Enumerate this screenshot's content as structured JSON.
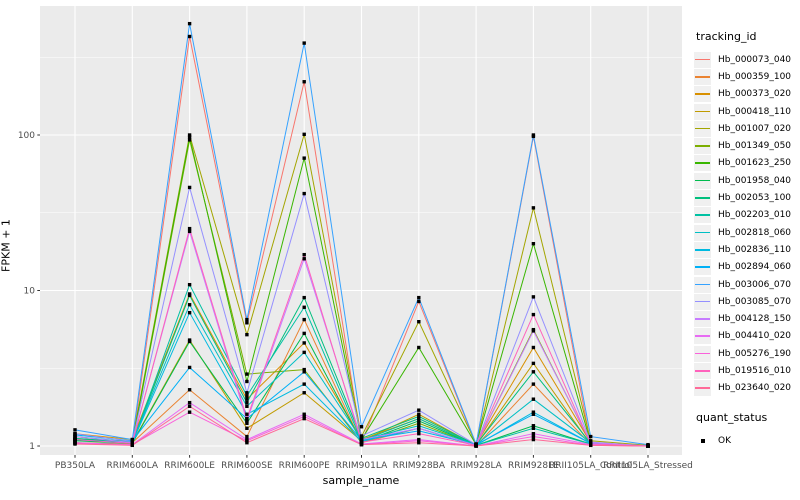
{
  "chart_data": {
    "type": "line",
    "title": "",
    "xlabel": "sample_name",
    "ylabel": "FPKM + 1",
    "y_scale": "log10",
    "y_ticks": [
      1,
      10,
      100
    ],
    "y_tick_labels": [
      "1",
      "10",
      "100"
    ],
    "y_minor_ticks": [
      3.1623,
      31.623,
      316.23
    ],
    "categories": [
      "PB350LA",
      "RRIM600LA",
      "RRIM600LE",
      "RRIM600SE",
      "RRIM600PE",
      "RRIM901LA",
      "RRIM928BA",
      "RRIM928LA",
      "RRIM928LE",
      "RRII105LA_Control",
      "RRII105LA_Stressed"
    ],
    "legend_title": "tracking_id",
    "series": [
      {
        "name": "Hb_000073_040",
        "color": "#F8766D",
        "values": [
          1.05,
          1.02,
          430,
          6.2,
          220,
          1.05,
          8.5,
          1.02,
          98,
          1.03,
          1.0
        ]
      },
      {
        "name": "Hb_000359_100",
        "color": "#EA8331",
        "values": [
          1.1,
          1.05,
          2.3,
          1.15,
          6.5,
          1.05,
          1.3,
          1.0,
          2.5,
          1.02,
          1.0
        ]
      },
      {
        "name": "Hb_000373_020",
        "color": "#D89000",
        "values": [
          1.2,
          1.1,
          9.5,
          2.0,
          4.6,
          1.1,
          1.5,
          1.02,
          4.3,
          1.05,
          1.0
        ]
      },
      {
        "name": "Hb_000418_110",
        "color": "#C09B00",
        "values": [
          1.15,
          1.05,
          4.8,
          1.3,
          2.2,
          1.08,
          1.6,
          1.01,
          3.4,
          1.02,
          1.0
        ]
      },
      {
        "name": "Hb_001007_020",
        "color": "#A3A500",
        "values": [
          1.1,
          1.08,
          100,
          5.2,
          101,
          1.15,
          6.3,
          1.03,
          34,
          1.08,
          1.01
        ]
      },
      {
        "name": "Hb_001349_050",
        "color": "#7CAE00",
        "values": [
          1.05,
          1.03,
          93,
          2.9,
          3.1,
          1.05,
          1.4,
          1.01,
          5.6,
          1.04,
          1.0
        ]
      },
      {
        "name": "Hb_001623_250",
        "color": "#39B600",
        "values": [
          1.1,
          1.05,
          97,
          2.6,
          71,
          1.1,
          4.3,
          1.02,
          20,
          1.05,
          1.0
        ]
      },
      {
        "name": "Hb_001958_040",
        "color": "#00BB4E",
        "values": [
          1.08,
          1.04,
          4.7,
          1.4,
          5.3,
          1.06,
          1.45,
          1.01,
          1.35,
          1.03,
          1.0
        ]
      },
      {
        "name": "Hb_002053_100",
        "color": "#00BF7D",
        "values": [
          1.12,
          1.06,
          9.3,
          1.9,
          9.0,
          1.12,
          1.55,
          1.02,
          3.0,
          1.04,
          1.0
        ]
      },
      {
        "name": "Hb_002203_010",
        "color": "#00C1A3",
        "values": [
          1.1,
          1.04,
          10.9,
          2.1,
          7.8,
          1.08,
          1.5,
          1.01,
          1.3,
          1.03,
          1.0
        ]
      },
      {
        "name": "Hb_002818_060",
        "color": "#00BFC4",
        "values": [
          1.15,
          1.06,
          8.1,
          1.8,
          4.0,
          1.1,
          1.35,
          1.02,
          2.0,
          1.05,
          1.0
        ]
      },
      {
        "name": "Hb_002836_110",
        "color": "#00BAE0",
        "values": [
          1.1,
          1.05,
          7.2,
          1.6,
          2.5,
          1.07,
          1.3,
          1.01,
          1.65,
          1.04,
          1.0
        ]
      },
      {
        "name": "Hb_002894_060",
        "color": "#00B0F6",
        "values": [
          1.18,
          1.08,
          3.2,
          1.5,
          3.0,
          1.09,
          1.25,
          1.02,
          1.6,
          1.04,
          1.0
        ]
      },
      {
        "name": "Hb_003006_070",
        "color": "#35A2FF",
        "values": [
          1.27,
          1.1,
          520,
          6.5,
          390,
          1.33,
          9.0,
          1.03,
          100,
          1.15,
          1.02
        ]
      },
      {
        "name": "Hb_003085_070",
        "color": "#9590FF",
        "values": [
          1.2,
          1.07,
          46,
          2.2,
          42,
          1.16,
          1.7,
          1.02,
          9.1,
          1.06,
          1.0
        ]
      },
      {
        "name": "Hb_004128_150",
        "color": "#C77CFF",
        "values": [
          1.15,
          1.05,
          24,
          1.45,
          16,
          1.1,
          1.3,
          1.01,
          5.5,
          1.05,
          1.0
        ]
      },
      {
        "name": "Hb_004410_020",
        "color": "#E76BF3",
        "values": [
          1.05,
          1.02,
          1.9,
          1.1,
          1.6,
          1.03,
          1.1,
          1.0,
          1.2,
          1.02,
          1.0
        ]
      },
      {
        "name": "Hb_005276_190",
        "color": "#FA62DB",
        "values": [
          1.04,
          1.02,
          1.65,
          1.08,
          1.55,
          1.02,
          1.08,
          1.0,
          1.15,
          1.01,
          1.0
        ]
      },
      {
        "name": "Hb_019516_010",
        "color": "#FF62BC",
        "values": [
          1.1,
          1.04,
          25,
          1.5,
          17,
          1.06,
          1.2,
          1.01,
          7.0,
          1.03,
          1.0
        ]
      },
      {
        "name": "Hb_023640_020",
        "color": "#FF6A98",
        "values": [
          1.03,
          1.01,
          1.8,
          1.05,
          1.5,
          1.02,
          1.05,
          1.0,
          1.1,
          1.01,
          1.0
        ]
      }
    ],
    "quant_legend": {
      "title": "quant_status",
      "items": [
        "OK"
      ]
    },
    "legend_position": "right",
    "grid": true,
    "colors": {
      "panel_background": "#EBEBEB",
      "grid_line": "#FFFFFF",
      "point_marker": "#000000",
      "tick_text": "#4D4D4D",
      "axis_title_text": "#000000",
      "legend_key_background": "#F0F0F0"
    }
  }
}
